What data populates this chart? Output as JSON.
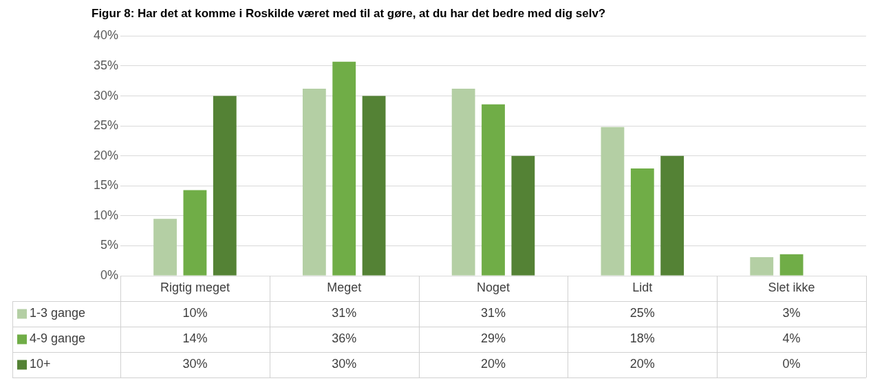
{
  "chart_data": {
    "type": "bar",
    "title": "Figur 8: Har det at komme i Roskilde været med til at gøre, at du har det bedre med dig selv?",
    "categories": [
      "Rigtig meget",
      "Meget",
      "Noget",
      "Lidt",
      "Slet ikke"
    ],
    "series": [
      {
        "name": "1-3 gange",
        "color": "#b4cfa4",
        "values": [
          9.5,
          31.2,
          31.2,
          24.8,
          3.1
        ],
        "value_labels": [
          "10%",
          "31%",
          "31%",
          "25%",
          "3%"
        ]
      },
      {
        "name": "4-9 gange",
        "color": "#70ad47",
        "values": [
          14.3,
          35.7,
          28.6,
          17.9,
          3.6
        ],
        "value_labels": [
          "14%",
          "36%",
          "29%",
          "18%",
          "4%"
        ]
      },
      {
        "name": "10+",
        "color": "#548235",
        "values": [
          30,
          30,
          20,
          20,
          0
        ],
        "value_labels": [
          "30%",
          "30%",
          "20%",
          "20%",
          "0%"
        ]
      }
    ],
    "ylim": [
      0,
      40
    ],
    "yticks": [
      {
        "value": 0,
        "label": "0%"
      },
      {
        "value": 5,
        "label": "5%"
      },
      {
        "value": 10,
        "label": "10%"
      },
      {
        "value": 15,
        "label": "15%"
      },
      {
        "value": 20,
        "label": "20%"
      },
      {
        "value": 25,
        "label": "25%"
      },
      {
        "value": 30,
        "label": "30%"
      },
      {
        "value": 35,
        "label": "35%"
      },
      {
        "value": 40,
        "label": "40%"
      }
    ],
    "grid": "y",
    "legend": "bottom left"
  }
}
